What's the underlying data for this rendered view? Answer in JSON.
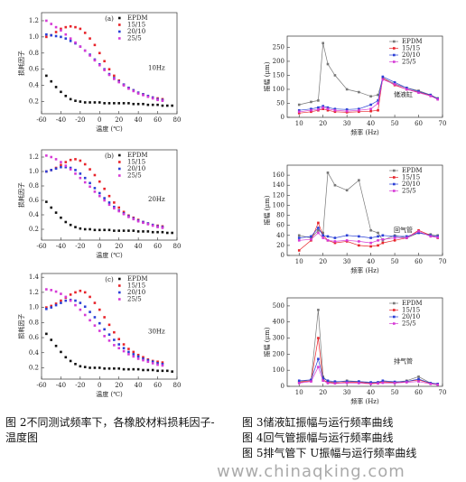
{
  "chart_data": [
    {
      "type": "scatter",
      "label": "(a)",
      "annotation": "10Hz",
      "xlabel": "温度 (℃)",
      "ylabel": "损耗因子",
      "x": [
        -55,
        -50,
        -45,
        -40,
        -35,
        -30,
        -25,
        -20,
        -15,
        -10,
        -5,
        0,
        5,
        10,
        15,
        20,
        25,
        30,
        35,
        40,
        45,
        50,
        55,
        60,
        65,
        70,
        75
      ],
      "xlim": [
        -60,
        80
      ],
      "xticks": [
        -60,
        -40,
        -20,
        0,
        20,
        40,
        60,
        80
      ],
      "ylim": [
        0.05,
        1.3
      ],
      "yticks": [
        0.2,
        0.4,
        0.6,
        0.8,
        {
          "value": 1,
          "label": "1.0"
        },
        1.2
      ],
      "series": [
        {
          "name": "EPDM",
          "color": "#111111",
          "values": [
            0.52,
            0.45,
            0.38,
            0.32,
            0.27,
            0.23,
            0.21,
            0.2,
            0.19,
            0.19,
            0.19,
            0.19,
            0.18,
            0.18,
            0.18,
            0.18,
            0.18,
            0.18,
            0.17,
            0.17,
            0.17,
            0.16,
            0.16,
            0.16,
            0.15,
            0.15,
            0.15
          ]
        },
        {
          "name": "15/15",
          "color": "#e8232a",
          "values": [
            1.0,
            1.02,
            1.06,
            1.1,
            1.12,
            1.13,
            1.12,
            1.1,
            1.05,
            0.98,
            0.9,
            0.8,
            0.7,
            0.6,
            0.52,
            0.46,
            0.41,
            0.37,
            0.34,
            0.31,
            0.29,
            0.27,
            0.25,
            0.24,
            0.23,
            null,
            null
          ]
        },
        {
          "name": "20/10",
          "color": "#2a3fd6",
          "values": [
            1.03,
            1.02,
            1.01,
            1.0,
            0.98,
            0.95,
            0.92,
            0.88,
            0.83,
            0.78,
            0.72,
            0.66,
            0.6,
            0.54,
            0.49,
            0.45,
            0.41,
            0.37,
            0.34,
            0.31,
            0.29,
            0.27,
            0.25,
            0.23,
            0.22,
            null,
            null
          ]
        },
        {
          "name": "25/5",
          "color": "#d63ad6",
          "values": [
            1.2,
            1.16,
            1.12,
            1.08,
            1.03,
            0.98,
            0.93,
            0.88,
            0.83,
            0.77,
            0.71,
            0.65,
            0.59,
            0.53,
            0.48,
            0.44,
            0.4,
            0.36,
            0.33,
            0.3,
            0.28,
            0.26,
            0.24,
            0.22,
            0.21,
            null,
            null
          ]
        }
      ]
    },
    {
      "type": "scatter",
      "label": "(b)",
      "annotation": "20Hz",
      "xlabel": "温度 (℃)",
      "ylabel": "损耗因子",
      "x": [
        -55,
        -50,
        -45,
        -40,
        -35,
        -30,
        -25,
        -20,
        -15,
        -10,
        -5,
        0,
        5,
        10,
        15,
        20,
        25,
        30,
        35,
        40,
        45,
        50,
        55,
        60,
        65,
        70,
        75
      ],
      "xlim": [
        -60,
        80
      ],
      "xticks": [
        -60,
        -40,
        -20,
        0,
        20,
        40,
        60,
        80
      ],
      "ylim": [
        0.05,
        1.3
      ],
      "yticks": [
        0.2,
        0.4,
        0.6,
        0.8,
        {
          "value": 1,
          "label": "1.0"
        },
        1.2
      ],
      "series": [
        {
          "name": "EPDM",
          "color": "#111111",
          "values": [
            0.58,
            0.5,
            0.43,
            0.36,
            0.3,
            0.26,
            0.23,
            0.21,
            0.2,
            0.2,
            0.19,
            0.19,
            0.19,
            0.19,
            0.18,
            0.18,
            0.18,
            0.18,
            0.18,
            0.17,
            0.17,
            0.17,
            0.16,
            0.16,
            0.16,
            0.15,
            0.15
          ]
        },
        {
          "name": "15/15",
          "color": "#e8232a",
          "values": [
            1.0,
            1.02,
            1.05,
            1.09,
            1.13,
            1.16,
            1.17,
            1.15,
            1.1,
            1.03,
            0.95,
            0.86,
            0.76,
            0.66,
            0.57,
            0.5,
            0.44,
            0.39,
            0.36,
            0.33,
            0.3,
            0.28,
            0.26,
            0.25,
            0.24,
            null,
            null
          ]
        },
        {
          "name": "20/10",
          "color": "#2a3fd6",
          "values": [
            1.0,
            1.02,
            1.04,
            1.06,
            1.06,
            1.05,
            1.02,
            0.97,
            0.91,
            0.84,
            0.77,
            0.7,
            0.63,
            0.57,
            0.51,
            0.46,
            0.42,
            0.38,
            0.35,
            0.32,
            0.3,
            0.28,
            0.26,
            0.24,
            0.23,
            null,
            null
          ]
        },
        {
          "name": "25/5",
          "color": "#d63ad6",
          "values": [
            1.22,
            1.2,
            1.17,
            1.13,
            1.08,
            1.03,
            0.97,
            0.91,
            0.85,
            0.79,
            0.72,
            0.66,
            0.6,
            0.54,
            0.49,
            0.45,
            0.41,
            0.37,
            0.34,
            0.31,
            0.29,
            0.27,
            0.25,
            0.23,
            0.22,
            null,
            null
          ]
        }
      ]
    },
    {
      "type": "scatter",
      "label": "(c)",
      "annotation": "30Hz",
      "xlabel": "温度 (℃)",
      "ylabel": "损耗因子",
      "x": [
        -55,
        -50,
        -45,
        -40,
        -35,
        -30,
        -25,
        -20,
        -15,
        -10,
        -5,
        0,
        5,
        10,
        15,
        20,
        25,
        30,
        35,
        40,
        45,
        50,
        55,
        60,
        65,
        70,
        75
      ],
      "xlim": [
        -60,
        80
      ],
      "xticks": [
        -60,
        -40,
        -20,
        0,
        20,
        40,
        60,
        80
      ],
      "ylim": [
        0.05,
        1.45
      ],
      "yticks": [
        0.2,
        0.4,
        0.6,
        0.8,
        {
          "value": 1,
          "label": "1.0"
        },
        1.2,
        1.4
      ],
      "series": [
        {
          "name": "EPDM",
          "color": "#111111",
          "values": [
            0.65,
            0.57,
            0.49,
            0.41,
            0.34,
            0.29,
            0.25,
            0.22,
            0.21,
            0.2,
            0.2,
            0.2,
            0.19,
            0.19,
            0.19,
            0.19,
            0.18,
            0.18,
            0.18,
            0.18,
            0.17,
            0.17,
            0.17,
            0.16,
            0.16,
            0.16,
            0.15
          ]
        },
        {
          "name": "15/15",
          "color": "#e8232a",
          "values": [
            1.0,
            1.02,
            1.05,
            1.09,
            1.13,
            1.17,
            1.2,
            1.22,
            1.2,
            1.14,
            1.06,
            0.97,
            0.87,
            0.77,
            0.67,
            0.58,
            0.51,
            0.45,
            0.41,
            0.37,
            0.34,
            0.31,
            0.29,
            0.28,
            0.27,
            null,
            null
          ]
        },
        {
          "name": "20/10",
          "color": "#2a3fd6",
          "values": [
            0.98,
            1.0,
            1.03,
            1.06,
            1.09,
            1.1,
            1.09,
            1.06,
            1.01,
            0.94,
            0.87,
            0.79,
            0.71,
            0.64,
            0.57,
            0.51,
            0.46,
            0.41,
            0.38,
            0.35,
            0.32,
            0.3,
            0.28,
            0.26,
            0.25,
            null,
            null
          ]
        },
        {
          "name": "25/5",
          "color": "#d63ad6",
          "values": [
            1.24,
            1.23,
            1.21,
            1.18,
            1.14,
            1.09,
            1.03,
            0.97,
            0.9,
            0.83,
            0.76,
            0.69,
            0.62,
            0.56,
            0.5,
            0.46,
            0.42,
            0.38,
            0.35,
            0.32,
            0.3,
            0.28,
            0.26,
            0.24,
            0.23,
            null,
            null
          ]
        }
      ]
    },
    {
      "type": "line",
      "annotation": "储液缸",
      "xlabel": "频率 (Hz)",
      "ylabel": "振幅 (μm)",
      "x": [
        10,
        15,
        18,
        20,
        22,
        25,
        30,
        35,
        40,
        43,
        45,
        50,
        55,
        60,
        65,
        68
      ],
      "xlim": [
        5,
        70
      ],
      "xticks": [
        10,
        20,
        30,
        40,
        50,
        60,
        70
      ],
      "ylim": [
        0,
        290
      ],
      "yticks": [
        0,
        50,
        100,
        150,
        200,
        250
      ],
      "series": [
        {
          "name": "EPDM",
          "color": "#777777",
          "values": [
            45,
            55,
            60,
            265,
            190,
            150,
            100,
            90,
            75,
            80,
            140,
            120,
            105,
            95,
            80,
            68
          ]
        },
        {
          "name": "15/15",
          "color": "#e8232a",
          "values": [
            15,
            20,
            25,
            30,
            25,
            20,
            18,
            20,
            22,
            25,
            140,
            115,
            100,
            90,
            78,
            65
          ]
        },
        {
          "name": "20/10",
          "color": "#2a3fd6",
          "values": [
            25,
            30,
            35,
            40,
            35,
            30,
            28,
            30,
            45,
            60,
            145,
            125,
            105,
            92,
            80,
            66
          ]
        },
        {
          "name": "25/5",
          "color": "#d63ad6",
          "values": [
            20,
            25,
            28,
            35,
            30,
            25,
            22,
            25,
            30,
            50,
            135,
            118,
            100,
            88,
            76,
            64
          ]
        }
      ]
    },
    {
      "type": "line",
      "annotation": "回气管",
      "xlabel": "频率 (Hz)",
      "ylabel": "振幅 (μm)",
      "x": [
        10,
        15,
        18,
        20,
        22,
        25,
        30,
        35,
        40,
        43,
        45,
        50,
        55,
        60,
        65,
        68
      ],
      "xlim": [
        5,
        70
      ],
      "xticks": [
        10,
        20,
        30,
        40,
        50,
        60,
        70
      ],
      "ylim": [
        0,
        180
      ],
      "yticks": [
        0,
        20,
        40,
        60,
        80,
        100,
        120,
        140,
        160
      ],
      "series": [
        {
          "name": "EPDM",
          "color": "#777777",
          "values": [
            40,
            35,
            50,
            45,
            165,
            140,
            130,
            150,
            50,
            45,
            30,
            40,
            35,
            45,
            42,
            40
          ]
        },
        {
          "name": "15/15",
          "color": "#e8232a",
          "values": [
            10,
            30,
            65,
            40,
            30,
            25,
            28,
            20,
            18,
            20,
            25,
            30,
            35,
            50,
            40,
            35
          ]
        },
        {
          "name": "20/10",
          "color": "#2a3fd6",
          "values": [
            35,
            38,
            55,
            40,
            38,
            35,
            40,
            38,
            35,
            38,
            40,
            38,
            38,
            45,
            40,
            38
          ]
        },
        {
          "name": "25/5",
          "color": "#d63ad6",
          "values": [
            30,
            32,
            45,
            35,
            30,
            28,
            30,
            28,
            25,
            30,
            32,
            35,
            35,
            48,
            38,
            36
          ]
        }
      ]
    },
    {
      "type": "line",
      "annotation": "排气管",
      "xlabel": "频率 (Hz)",
      "ylabel": "振幅 (μm)",
      "x": [
        10,
        15,
        18,
        20,
        22,
        25,
        30,
        35,
        40,
        43,
        45,
        50,
        55,
        60,
        65,
        68
      ],
      "xlim": [
        5,
        70
      ],
      "xticks": [
        10,
        20,
        30,
        40,
        50,
        60,
        70
      ],
      "ylim": [
        0,
        550
      ],
      "yticks": [
        0,
        100,
        200,
        300,
        400,
        500
      ],
      "series": [
        {
          "name": "EPDM",
          "color": "#777777",
          "values": [
            30,
            40,
            475,
            60,
            30,
            25,
            35,
            30,
            20,
            25,
            30,
            25,
            35,
            60,
            20,
            15
          ]
        },
        {
          "name": "15/15",
          "color": "#e8232a",
          "values": [
            25,
            35,
            300,
            40,
            25,
            20,
            25,
            25,
            18,
            22,
            28,
            22,
            30,
            40,
            18,
            12
          ]
        },
        {
          "name": "20/10",
          "color": "#2a3fd6",
          "values": [
            35,
            40,
            170,
            50,
            35,
            30,
            30,
            30,
            25,
            25,
            35,
            28,
            30,
            45,
            20,
            15
          ]
        },
        {
          "name": "25/5",
          "color": "#d63ad6",
          "values": [
            20,
            30,
            120,
            35,
            20,
            18,
            22,
            20,
            15,
            18,
            22,
            20,
            25,
            30,
            15,
            10
          ]
        }
      ]
    }
  ],
  "captions": [
    "图 2不同测试频率下，各橡胶材料损耗因子-温度图",
    "图 3储液缸振幅与运行频率曲线",
    "图 4回气管振幅与运行频率曲线",
    "图 5排气管下 U振幅与运行频率曲线"
  ],
  "watermark": "www.chinaqking.com"
}
